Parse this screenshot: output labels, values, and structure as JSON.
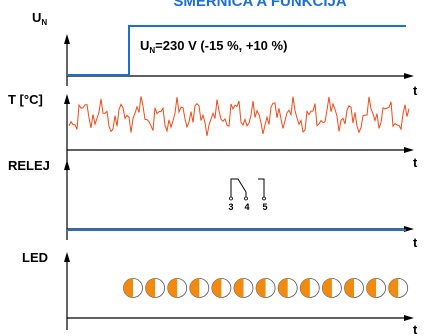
{
  "title": "SMĚRNICA A FUNKCIJA",
  "colors": {
    "title": "#1f6fd1",
    "supply": "#1f6fd1",
    "temperature": "#f04a1a",
    "relay": "#1f6fd1",
    "led_fill": "#f08a10",
    "axis": "#000000"
  },
  "panels": {
    "supply": {
      "label_main": "U",
      "label_sub": "N",
      "axis_t": "t",
      "annotation_main": "U",
      "annotation_sub": "N",
      "annotation_rest": "=230 V (-15 %, +10 %)"
    },
    "temperature": {
      "label": "T [°C]",
      "axis_t": "t"
    },
    "relay": {
      "label": "RELEJ",
      "axis_t": "t",
      "contacts": [
        "3",
        "4",
        "5"
      ]
    },
    "led": {
      "label": "LED",
      "axis_t": "t",
      "blink_count": 13,
      "icon": "half-filled-led-icon"
    }
  }
}
